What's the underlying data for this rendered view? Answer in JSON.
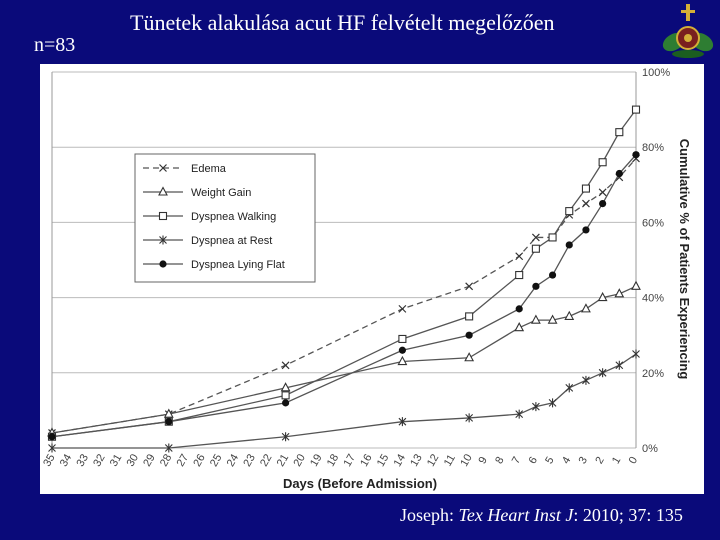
{
  "slide": {
    "title": "Tünetek alakulása acut HF felvételt megelőzően",
    "n_label": "n=83",
    "citation_author": "Joseph: ",
    "citation_journal": "Tex Heart Inst J",
    "citation_rest": ": 2010; 37: 135"
  },
  "chart_data": {
    "type": "line",
    "xlabel": "Days (Before Admission)",
    "ylabel": "Cumulative % of Patients Experiencing",
    "x_ticks": [
      35,
      34,
      33,
      32,
      31,
      30,
      29,
      28,
      27,
      26,
      25,
      24,
      23,
      22,
      21,
      20,
      19,
      18,
      17,
      16,
      15,
      14,
      13,
      12,
      11,
      10,
      9,
      8,
      7,
      6,
      5,
      4,
      3,
      2,
      1,
      0
    ],
    "xlim": [
      35,
      0
    ],
    "y_ticks": [
      "0%",
      "20%",
      "40%",
      "60%",
      "80%",
      "100%"
    ],
    "ylim": [
      0,
      100
    ],
    "legend_position": "top-left",
    "series": [
      {
        "name": "Edema",
        "marker": "x",
        "dash": true,
        "x": [
          35,
          28,
          21,
          14,
          10,
          7,
          6,
          5,
          4,
          3,
          2,
          1,
          0
        ],
        "y": [
          4,
          9,
          22,
          37,
          43,
          51,
          56,
          56,
          62,
          65,
          68,
          72,
          77
        ]
      },
      {
        "name": "Weight Gain",
        "marker": "triangle",
        "dash": false,
        "x": [
          35,
          28,
          21,
          14,
          10,
          7,
          6,
          5,
          4,
          3,
          2,
          1,
          0
        ],
        "y": [
          4,
          9,
          16,
          23,
          24,
          32,
          34,
          34,
          35,
          37,
          40,
          41,
          43
        ]
      },
      {
        "name": "Dyspnea Walking",
        "marker": "square",
        "dash": false,
        "x": [
          35,
          28,
          21,
          14,
          10,
          7,
          6,
          5,
          4,
          3,
          2,
          1,
          0
        ],
        "y": [
          3,
          7,
          14,
          29,
          35,
          46,
          53,
          56,
          63,
          69,
          76,
          84,
          90
        ]
      },
      {
        "name": "Dyspnea at Rest",
        "marker": "asterisk",
        "dash": false,
        "x": [
          35,
          28,
          21,
          14,
          10,
          7,
          6,
          5,
          4,
          3,
          2,
          1,
          0
        ],
        "y": [
          0,
          0,
          3,
          7,
          8,
          9,
          11,
          12,
          16,
          18,
          20,
          22,
          25
        ]
      },
      {
        "name": "Dyspnea Lying Flat",
        "marker": "circle",
        "dash": false,
        "x": [
          35,
          28,
          21,
          14,
          10,
          7,
          6,
          5,
          4,
          3,
          2,
          1,
          0
        ],
        "y": [
          3,
          7,
          12,
          26,
          30,
          37,
          43,
          46,
          54,
          58,
          65,
          73,
          78
        ]
      }
    ]
  }
}
